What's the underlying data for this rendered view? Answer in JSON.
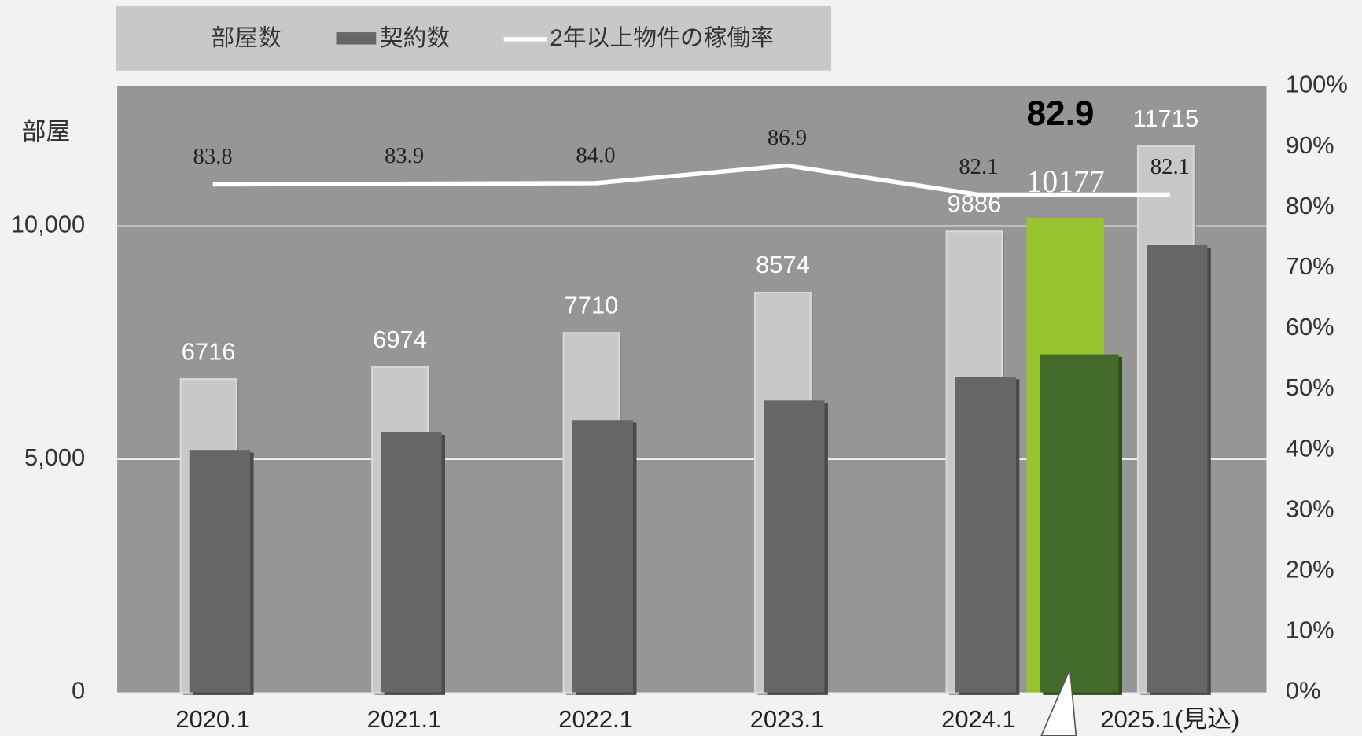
{
  "chart_data": {
    "type": "bar",
    "y_label": "部屋",
    "categories": [
      "2020.1",
      "2021.1",
      "2022.1",
      "2023.1",
      "2024.1",
      "2025.1(見込)"
    ],
    "series": [
      {
        "name": "部屋数",
        "color": "#c8c8c8",
        "values": [
          6716,
          6974,
          7710,
          8574,
          9886,
          11715
        ]
      },
      {
        "name": "契約数",
        "color": "#666666",
        "values": [
          5200,
          5580,
          5840,
          6260,
          6770,
          9590
        ]
      },
      {
        "name": "2年以上物件の稼働率",
        "color": "#ffffff",
        "type": "line",
        "axis": "y2",
        "values": [
          83.8,
          83.9,
          84.0,
          86.9,
          82.1,
          82.1
        ],
        "value_labels": [
          "83.8",
          "83.9",
          "84.0",
          "86.9",
          "82.1",
          "82.1"
        ]
      }
    ],
    "highlight": {
      "room_value": 10177,
      "contract_value": 7250,
      "rate": 82.9,
      "color": "#99c432",
      "dark_color": "#426b2b"
    },
    "ylim": [
      0,
      13000
    ],
    "yticks": [
      0,
      {
        "value": 5000,
        "label": "5,000"
      },
      {
        "value": 10000,
        "label": "10,000"
      }
    ],
    "y2lim": [
      0,
      100
    ],
    "y2ticks": [
      {
        "value": 0,
        "label": "0%"
      },
      {
        "value": 10,
        "label": "10%"
      },
      {
        "value": 20,
        "label": "20%"
      },
      {
        "value": 30,
        "label": "30%"
      },
      {
        "value": 40,
        "label": "40%"
      },
      {
        "value": 50,
        "label": "50%"
      },
      {
        "value": 60,
        "label": "60%"
      },
      {
        "value": 70,
        "label": "70%"
      },
      {
        "value": 80,
        "label": "80%"
      },
      {
        "value": 90,
        "label": "90%"
      },
      {
        "value": 100,
        "label": "100%"
      }
    ],
    "grid": true,
    "plot_color": "#969696"
  }
}
